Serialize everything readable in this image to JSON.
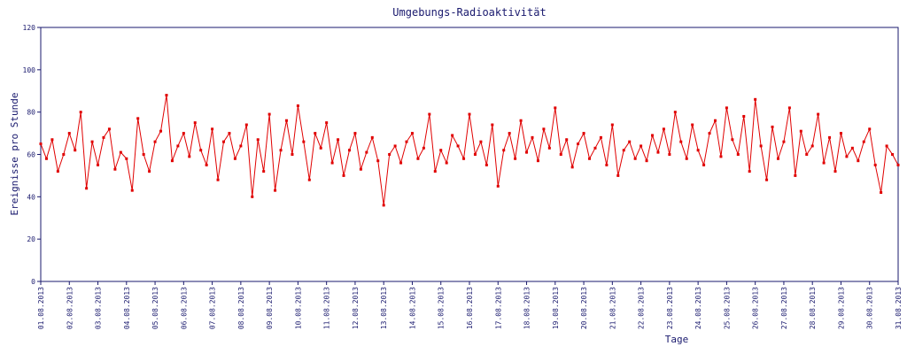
{
  "chart_data": {
    "type": "line",
    "title": "Umgebungs-Radioaktivität",
    "x_label": "Tage",
    "y_label": "Ereignisse pro Stunde",
    "xlim": [
      0,
      30
    ],
    "ylim": [
      0,
      120
    ],
    "yticks": [
      0,
      20,
      40,
      60,
      80,
      100,
      120
    ],
    "xticks": [
      {
        "value": 0,
        "label": "01.08.2013"
      },
      {
        "value": 1,
        "label": "02.08.2013"
      },
      {
        "value": 2,
        "label": "03.08.2013"
      },
      {
        "value": 3,
        "label": "04.08.2013"
      },
      {
        "value": 4,
        "label": "05.08.2013"
      },
      {
        "value": 5,
        "label": "06.08.2013"
      },
      {
        "value": 6,
        "label": "07.08.2013"
      },
      {
        "value": 7,
        "label": "08.08.2013"
      },
      {
        "value": 8,
        "label": "09.08.2013"
      },
      {
        "value": 9,
        "label": "10.08.2013"
      },
      {
        "value": 10,
        "label": "11.08.2013"
      },
      {
        "value": 11,
        "label": "12.08.2013"
      },
      {
        "value": 12,
        "label": "13.08.2013"
      },
      {
        "value": 13,
        "label": "14.08.2013"
      },
      {
        "value": 14,
        "label": "15.08.2013"
      },
      {
        "value": 15,
        "label": "16.08.2013"
      },
      {
        "value": 16,
        "label": "17.08.2013"
      },
      {
        "value": 17,
        "label": "18.08.2013"
      },
      {
        "value": 18,
        "label": "19.08.2013"
      },
      {
        "value": 19,
        "label": "20.08.2013"
      },
      {
        "value": 20,
        "label": "21.08.2013"
      },
      {
        "value": 21,
        "label": "22.08.2013"
      },
      {
        "value": 22,
        "label": "23.08.2013"
      },
      {
        "value": 23,
        "label": "24.08.2013"
      },
      {
        "value": 24,
        "label": "25.08.2013"
      },
      {
        "value": 25,
        "label": "26.08.2013"
      },
      {
        "value": 26,
        "label": "27.08.2013"
      },
      {
        "value": 27,
        "label": "28.08.2013"
      },
      {
        "value": 28,
        "label": "29.08.2013"
      },
      {
        "value": 29,
        "label": "30.08.2013"
      },
      {
        "value": 30,
        "label": "31.08.2013"
      }
    ],
    "x": [
      0,
      0.2,
      0.4,
      0.6,
      0.8,
      1,
      1.2,
      1.4,
      1.6,
      1.8,
      2,
      2.2,
      2.4,
      2.6,
      2.8,
      3,
      3.2,
      3.4,
      3.6,
      3.8,
      4,
      4.2,
      4.4,
      4.6,
      4.8,
      5,
      5.2,
      5.4,
      5.6,
      5.8,
      6,
      6.2,
      6.4,
      6.6,
      6.8,
      7,
      7.2,
      7.4,
      7.6,
      7.8,
      8,
      8.2,
      8.4,
      8.6,
      8.8,
      9,
      9.2,
      9.4,
      9.6,
      9.8,
      10,
      10.2,
      10.4,
      10.6,
      10.8,
      11,
      11.2,
      11.4,
      11.6,
      11.8,
      12,
      12.2,
      12.4,
      12.6,
      12.8,
      13,
      13.2,
      13.4,
      13.6,
      13.8,
      14,
      14.2,
      14.4,
      14.6,
      14.8,
      15,
      15.2,
      15.4,
      15.6,
      15.8,
      16,
      16.2,
      16.4,
      16.6,
      16.8,
      17,
      17.2,
      17.4,
      17.6,
      17.8,
      18,
      18.2,
      18.4,
      18.6,
      18.8,
      19,
      19.2,
      19.4,
      19.6,
      19.8,
      20,
      20.2,
      20.4,
      20.6,
      20.8,
      21,
      21.2,
      21.4,
      21.6,
      21.8,
      22,
      22.2,
      22.4,
      22.6,
      22.8,
      23,
      23.2,
      23.4,
      23.6,
      23.8,
      24,
      24.2,
      24.4,
      24.6,
      24.8,
      25,
      25.2,
      25.4,
      25.6,
      25.8,
      26,
      26.2,
      26.4,
      26.6,
      26.8,
      27,
      27.2,
      27.4,
      27.6,
      27.8,
      28,
      28.2,
      28.4,
      28.6,
      28.8,
      29,
      29.2,
      29.4,
      29.6,
      29.8,
      30
    ],
    "series": [
      {
        "color": "#e00000",
        "values": [
          65,
          58,
          67,
          52,
          60,
          70,
          62,
          80,
          44,
          66,
          55,
          68,
          72,
          53,
          61,
          58,
          43,
          77,
          60,
          52,
          66,
          71,
          88,
          57,
          64,
          70,
          59,
          75,
          62,
          55,
          72,
          48,
          66,
          70,
          58,
          64,
          74,
          40,
          67,
          52,
          79,
          43,
          62,
          76,
          60,
          83,
          66,
          48,
          70,
          63,
          75,
          56,
          67,
          50,
          62,
          70,
          53,
          61,
          68,
          57,
          36,
          60,
          64,
          56,
          66,
          70,
          58,
          63,
          79,
          52,
          62,
          56,
          69,
          64,
          58,
          79,
          60,
          66,
          55,
          74,
          45,
          62,
          70,
          58,
          76,
          61,
          68,
          57,
          72,
          63,
          82,
          60,
          67,
          54,
          65,
          70,
          58,
          63,
          68,
          55,
          74,
          50,
          62,
          66,
          58,
          64,
          57,
          69,
          61,
          72,
          60,
          80,
          66,
          58,
          74,
          62,
          55,
          70,
          76,
          59,
          82,
          67,
          60,
          78,
          52,
          86,
          64,
          48,
          73,
          58,
          66,
          82,
          50,
          71,
          60,
          64,
          79,
          56,
          68,
          52,
          70,
          59,
          63,
          57,
          66,
          72,
          55,
          42,
          64,
          60,
          55
        ]
      }
    ]
  }
}
